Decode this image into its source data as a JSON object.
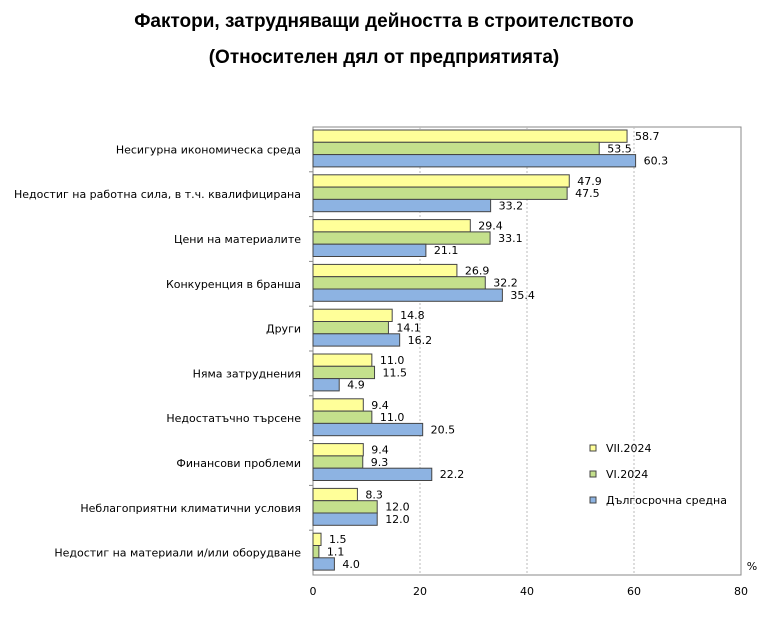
{
  "chart_data": {
    "type": "bar",
    "orientation": "horizontal",
    "title": "Фактори, затрудняващи дейността в строителството",
    "subtitle": "(Относителен дял от предприятията)",
    "xlabel": "%",
    "xlim": [
      0,
      80
    ],
    "xticks": [
      "0",
      "20",
      "40",
      "60",
      "80"
    ],
    "grid": true,
    "legend_position": "right",
    "categories": [
      "Несигурна икономическа среда",
      "Недостиг на работна сила, в т.ч. квалифицирана",
      "Цени на материалите",
      "Конкуренция в бранша",
      "Други",
      "Няма затруднения",
      "Недостатъчно търсене",
      "Финансови проблеми",
      "Неблагоприятни климатични условия",
      "Недостиг на материали и/или оборудване"
    ],
    "series": [
      {
        "name": "VII.2024",
        "color": "#FFFF99",
        "values": [
          58.7,
          47.9,
          29.4,
          26.9,
          14.8,
          11.0,
          9.4,
          9.4,
          8.3,
          1.5
        ]
      },
      {
        "name": "VI.2024",
        "color": "#C4E08C",
        "values": [
          53.5,
          47.5,
          33.1,
          32.2,
          14.1,
          11.5,
          11.0,
          9.3,
          12.0,
          1.1
        ]
      },
      {
        "name": "Дългосрочна средна",
        "color": "#8DB3E2",
        "values": [
          60.3,
          33.2,
          21.1,
          35.4,
          16.2,
          4.9,
          20.5,
          22.2,
          12.0,
          4.0
        ]
      }
    ]
  }
}
